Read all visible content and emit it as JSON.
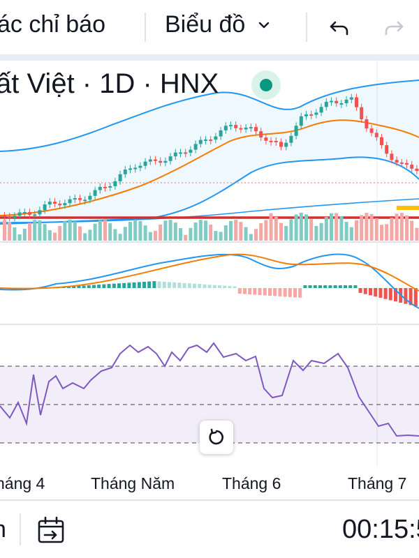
{
  "toolbar": {
    "indicators_label": "ác chỉ báo",
    "chart_type_label": "Biểu đồ",
    "chevron_icon": "chevron-down-icon",
    "undo_icon": "undo-icon",
    "redo_icon": "redo-icon"
  },
  "legend": {
    "title": "ất Việt · 1D · HNX",
    "status_color": "#089981"
  },
  "time_axis": {
    "labels": [
      "háng 4",
      "Tháng Năm",
      "Tháng 6",
      "Tháng 7"
    ]
  },
  "reset_button_icon": "reset-rotate-icon",
  "bottombar": {
    "left_fragment": "n",
    "calendar_icon": "calendar-goto-icon",
    "clock": "00:15:5"
  },
  "colors": {
    "up": "#26a69a",
    "down": "#ef5350",
    "bollinger": "#2196f3",
    "ma": "#f57c00",
    "rsi": "#7e57c2",
    "support_line": "#d32f2f"
  }
}
